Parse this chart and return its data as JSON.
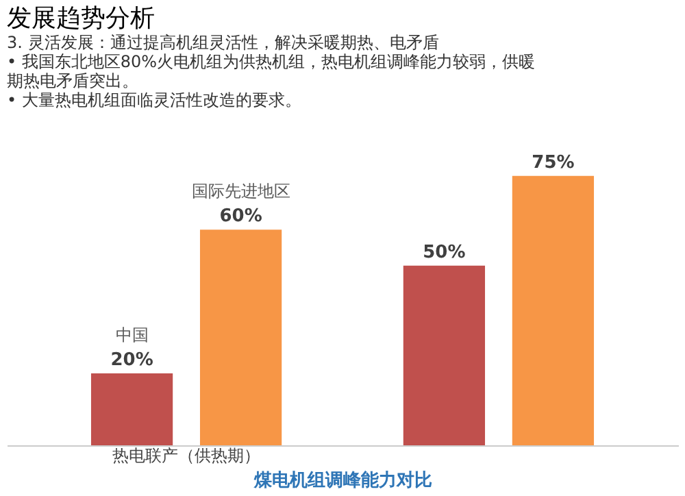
{
  "chart_data": {
    "type": "bar",
    "title": "发展趋势分析",
    "subtitle": "3. 灵活发展：通过提高机组灵活性，解决采暖期热、电矛盾",
    "annotations": [
      "• 我国东北地区80%火电机组为供热机组，热电机组调峰能力较弱，供暖期热电矛盾突出。",
      "• 大量热电机组面临灵活性改造的要求。"
    ],
    "xlabel": "煤电机组调峰能力对比",
    "categories": [
      "热电联产（供热期）",
      null
    ],
    "series": [
      {
        "name": "中国",
        "color": "#c0504d",
        "values": [
          20,
          50
        ],
        "value_labels": [
          "20%",
          "50%"
        ]
      },
      {
        "name": "国际先进地区",
        "color": "#f79646",
        "values": [
          60,
          75
        ],
        "value_labels": [
          "60%",
          "75%"
        ]
      }
    ],
    "tick_labels": "x",
    "grid": false
  }
}
